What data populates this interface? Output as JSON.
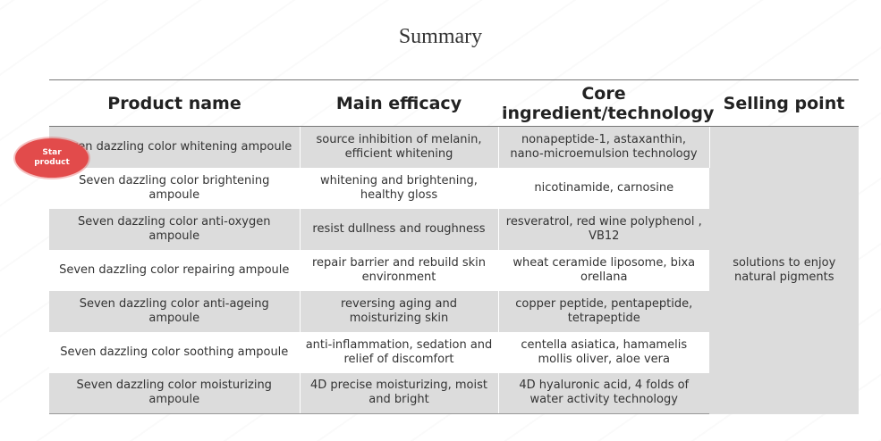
{
  "title": "Summary",
  "headers": [
    "Product name",
    "Main efficacy",
    "Core ingredient/technology",
    "Selling point"
  ],
  "badge": {
    "line1": "Star",
    "line2": "product"
  },
  "rows": [
    {
      "product": "Seven dazzling color whitening ampoule",
      "efficacy": "source inhibition of melanin, efficient whitening",
      "ingredient": "nonapeptide-1, astaxanthin, nano-microemulsion technology"
    },
    {
      "product": "Seven dazzling color brightening ampoule",
      "efficacy": "whitening and brightening, healthy gloss",
      "ingredient": "nicotinamide, carnosine"
    },
    {
      "product": "Seven dazzling color anti-oxygen ampoule",
      "efficacy": "resist dullness and roughness",
      "ingredient": "resveratrol, red wine polyphenol , VB12"
    },
    {
      "product": "Seven dazzling color repairing ampoule",
      "efficacy": "repair barrier and rebuild skin environment",
      "ingredient": "wheat ceramide liposome, bixa orellana"
    },
    {
      "product": "Seven dazzling color anti-ageing ampoule",
      "efficacy": "reversing aging and moisturizing skin",
      "ingredient": "copper peptide, pentapeptide, tetrapeptide"
    },
    {
      "product": "Seven dazzling color soothing ampoule",
      "efficacy": "anti-inflammation, sedation and relief of discomfort",
      "ingredient": "centella asiatica, hamamelis mollis oliver, aloe vera"
    },
    {
      "product": "Seven dazzling color moisturizing ampoule",
      "efficacy": "4D precise moisturizing, moist and bright",
      "ingredient": "4D hyaluronic acid, 4 folds of water activity technology"
    }
  ],
  "selling_point": "solutions to enjoy natural pigments"
}
